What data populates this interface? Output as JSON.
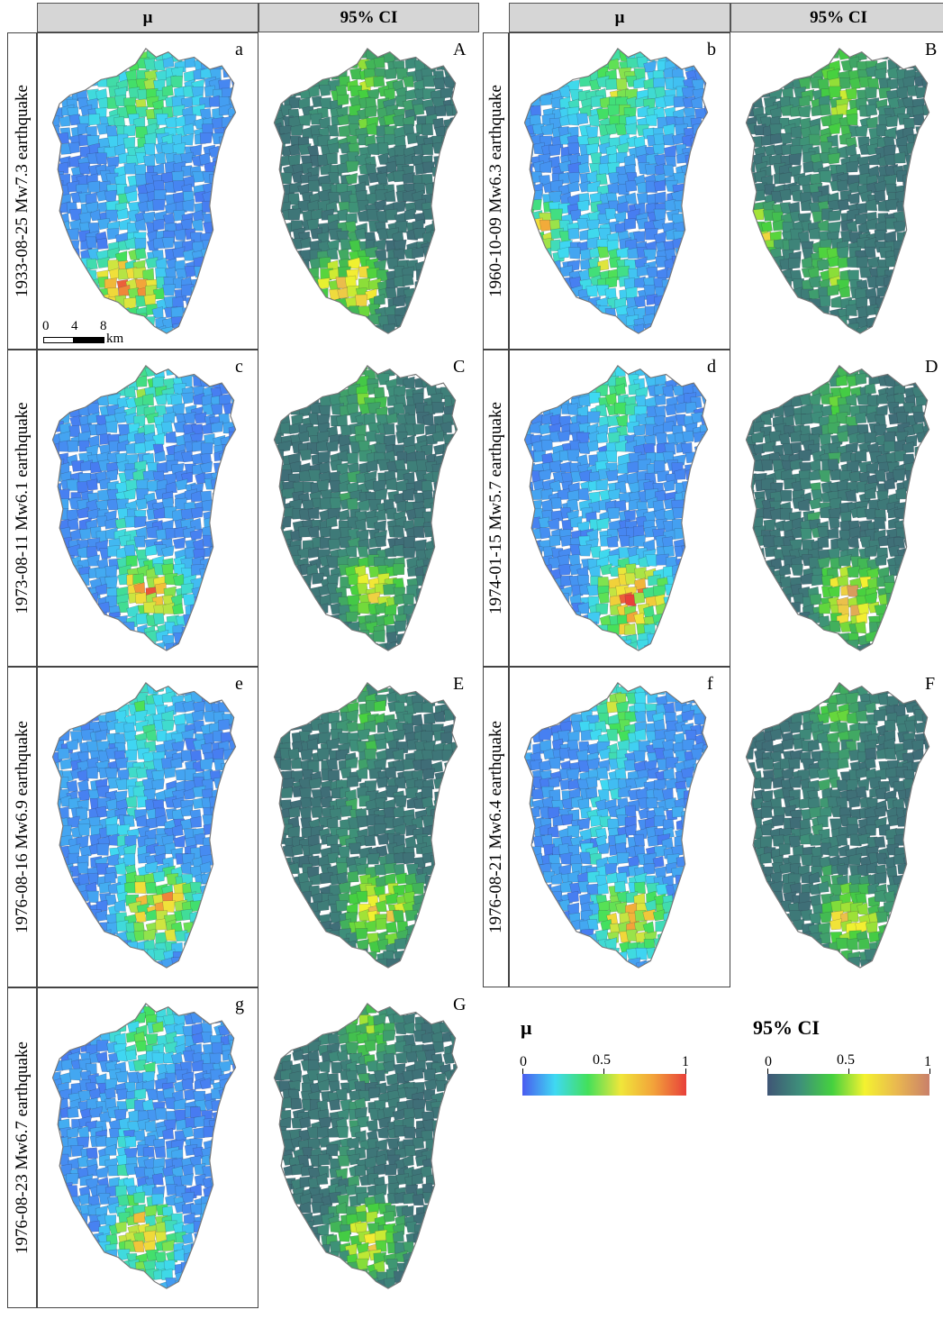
{
  "headers": {
    "col1": "μ",
    "col2": "95% CI",
    "col3": "μ",
    "col4": "95% CI"
  },
  "rows": [
    {
      "label": "1933-08-25  Mw7.3 earthquake",
      "mu_letter": "a",
      "ci_letter": "A"
    },
    {
      "label": "1960-10-09  Mw6.3 earthquake",
      "mu_letter": "b",
      "ci_letter": "B"
    },
    {
      "label": "1973-08-11  Mw6.1 earthquake",
      "mu_letter": "c",
      "ci_letter": "C"
    },
    {
      "label": "1974-01-15  Mw5.7 earthquake",
      "mu_letter": "d",
      "ci_letter": "D"
    },
    {
      "label": "1976-08-16  Mw6.9 earthquake",
      "mu_letter": "e",
      "ci_letter": "E"
    },
    {
      "label": "1976-08-21  Mw6.4 earthquake",
      "mu_letter": "f",
      "ci_letter": "F"
    },
    {
      "label": "1976-08-23  Mw6.7 earthquake",
      "mu_letter": "g",
      "ci_letter": "G"
    }
  ],
  "scalebar": {
    "ticks": [
      "0",
      "4",
      "8"
    ],
    "unit": "km"
  },
  "legend": {
    "mu": {
      "title": "μ",
      "ticks": [
        "0",
        "0.5",
        "1"
      ],
      "colors": [
        "#4a5cf0",
        "#3fd9f2",
        "#43e05a",
        "#f0e63a",
        "#f2a23a",
        "#e8403a"
      ]
    },
    "ci": {
      "title": "95% CI",
      "ticks": [
        "0",
        "0.5",
        "1"
      ],
      "colors": [
        "#3f5575",
        "#3e8f7a",
        "#45d13f",
        "#f4f230",
        "#e9b750",
        "#c9806a"
      ]
    }
  }
}
